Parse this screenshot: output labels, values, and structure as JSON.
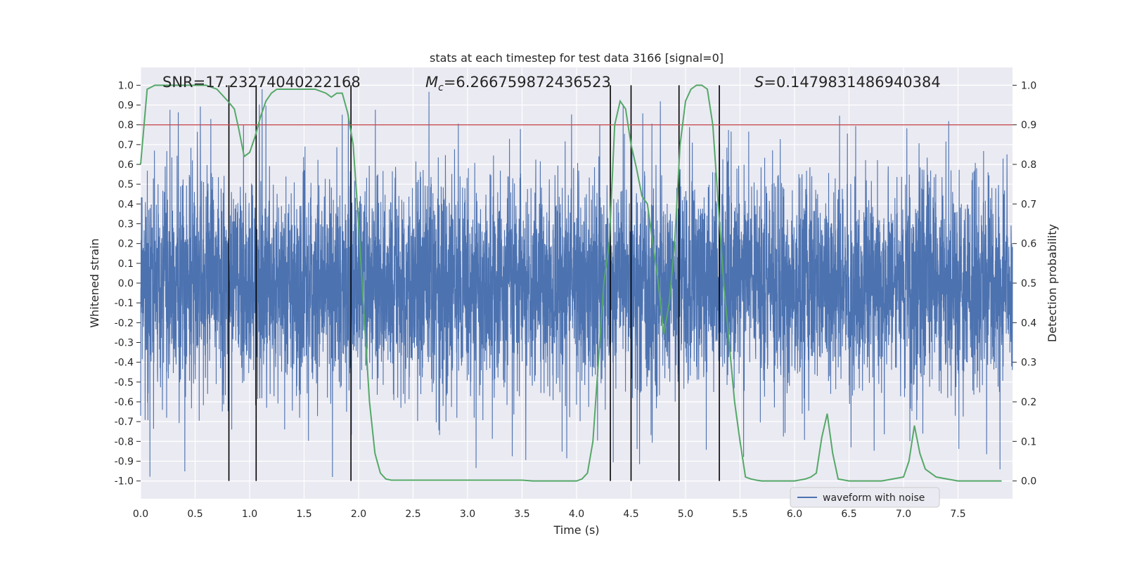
{
  "chart_data": {
    "type": "line",
    "title": "stats at each timestep for test data 3166 [signal=0]",
    "xlabel": "Time (s)",
    "ylabel_left": "Whitened strain",
    "ylabel_right": "Detection probability",
    "xlim": [
      0,
      8
    ],
    "ylim_left": [
      -1.09,
      1.09
    ],
    "ylim_right": [
      -0.045,
      1.045
    ],
    "xticks": [
      "0.0",
      "0.5",
      "1.0",
      "1.5",
      "2.0",
      "2.5",
      "3.0",
      "3.5",
      "4.0",
      "4.5",
      "5.0",
      "5.5",
      "6.0",
      "6.5",
      "7.0",
      "7.5"
    ],
    "yticks_left": [
      "-1.0",
      "-0.9",
      "-0.8",
      "-0.7",
      "-0.6",
      "-0.5",
      "-0.4",
      "-0.3",
      "-0.2",
      "-0.1",
      "0.0",
      "0.1",
      "0.2",
      "0.3",
      "0.4",
      "0.5",
      "0.6",
      "0.7",
      "0.8",
      "0.9",
      "1.0"
    ],
    "yticks_right": [
      "0.0",
      "0.1",
      "0.2",
      "0.3",
      "0.4",
      "0.5",
      "0.6",
      "0.7",
      "0.8",
      "0.9",
      "1.0"
    ],
    "grid": true,
    "legend_position": "bottom-right",
    "annotations": {
      "snr": "SNR=17.23274040222168",
      "mc_symbol": "M",
      "mc_sub": "c",
      "mc_value": "=6.266759872436523",
      "s_symbol": "S",
      "s_value": "=0.1479831486940384"
    },
    "series": [
      {
        "name": "waveform with noise",
        "color": "#4c72b0",
        "axis": "left",
        "description_range": [
          -0.98,
          0.98
        ]
      },
      {
        "color": "#55a868",
        "axis": "right",
        "x": [
          0.0,
          0.06,
          0.13,
          0.2,
          0.3,
          0.4,
          0.5,
          0.6,
          0.7,
          0.8,
          0.86,
          0.9,
          0.95,
          1.0,
          1.05,
          1.1,
          1.15,
          1.2,
          1.25,
          1.3,
          1.35,
          1.4,
          1.5,
          1.6,
          1.7,
          1.75,
          1.8,
          1.85,
          1.9,
          1.95,
          2.0,
          2.05,
          2.1,
          2.15,
          2.2,
          2.25,
          2.3,
          2.4,
          2.5,
          2.6,
          2.7,
          2.8,
          2.9,
          3.0,
          3.1,
          3.2,
          3.3,
          3.4,
          3.5,
          3.6,
          3.7,
          3.8,
          3.9,
          4.0,
          4.05,
          4.1,
          4.15,
          4.2,
          4.25,
          4.3,
          4.35,
          4.4,
          4.45,
          4.5,
          4.55,
          4.6,
          4.65,
          4.7,
          4.75,
          4.8,
          4.85,
          4.9,
          4.95,
          5.0,
          5.05,
          5.1,
          5.15,
          5.2,
          5.25,
          5.3,
          5.35,
          5.4,
          5.45,
          5.5,
          5.55,
          5.6,
          5.65,
          5.7,
          5.8,
          5.9,
          6.0,
          6.1,
          6.15,
          6.2,
          6.25,
          6.3,
          6.35,
          6.4,
          6.5,
          6.6,
          6.7,
          6.8,
          6.9,
          7.0,
          7.05,
          7.1,
          7.15,
          7.2,
          7.25,
          7.3,
          7.4,
          7.5,
          7.6,
          7.7,
          7.8,
          7.9
        ],
        "y": [
          0.8,
          0.99,
          1.0,
          1.0,
          1.0,
          1.0,
          1.0,
          1.0,
          0.99,
          0.96,
          0.94,
          0.89,
          0.82,
          0.83,
          0.87,
          0.92,
          0.96,
          0.98,
          0.99,
          0.99,
          0.99,
          0.99,
          0.99,
          0.99,
          0.98,
          0.97,
          0.98,
          0.98,
          0.93,
          0.85,
          0.65,
          0.42,
          0.2,
          0.07,
          0.02,
          0.005,
          0.002,
          0.002,
          0.002,
          0.002,
          0.002,
          0.002,
          0.002,
          0.002,
          0.002,
          0.002,
          0.002,
          0.002,
          0.002,
          0.0,
          0.0,
          0.0,
          0.0,
          0.0,
          0.005,
          0.02,
          0.1,
          0.3,
          0.5,
          0.6,
          0.9,
          0.96,
          0.94,
          0.85,
          0.79,
          0.72,
          0.7,
          0.6,
          0.5,
          0.37,
          0.45,
          0.6,
          0.85,
          0.96,
          0.99,
          1.0,
          1.0,
          0.99,
          0.9,
          0.7,
          0.5,
          0.35,
          0.2,
          0.1,
          0.01,
          0.005,
          0.002,
          0.0,
          0.0,
          0.0,
          0.0,
          0.005,
          0.01,
          0.02,
          0.11,
          0.17,
          0.07,
          0.005,
          0.0,
          0.0,
          0.0,
          0.0,
          0.005,
          0.01,
          0.05,
          0.14,
          0.07,
          0.03,
          0.02,
          0.01,
          0.005,
          0.0,
          0.0,
          0.0,
          0.0,
          0.0
        ]
      }
    ],
    "threshold": {
      "value": 0.9,
      "axis": "right",
      "color": "#c44e52"
    },
    "vertical_lines_x": [
      0.81,
      1.06,
      1.93,
      4.31,
      4.5,
      4.94,
      5.31
    ],
    "vertical_lines_color": "#000000"
  }
}
